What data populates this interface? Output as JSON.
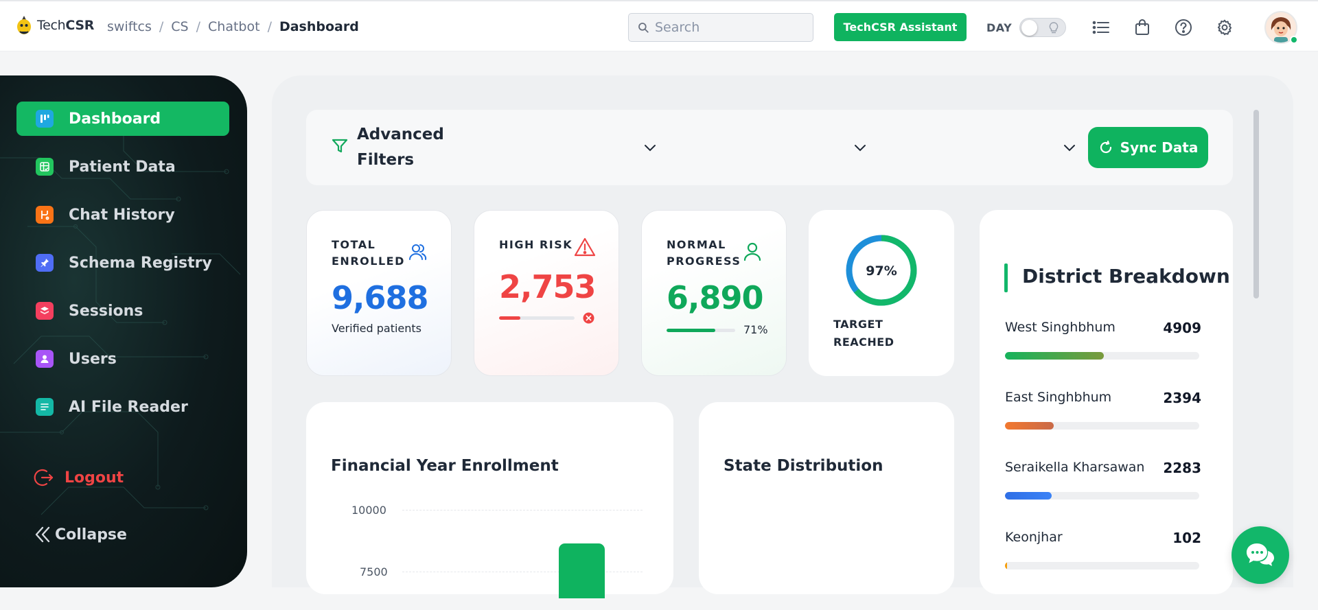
{
  "header": {
    "logo_text_light": "Tech",
    "logo_text_bold": "CSR",
    "breadcrumb": [
      "swiftcs",
      "CS",
      "Chatbot",
      "Dashboard"
    ],
    "search_placeholder": "Search",
    "assistant_label": "TechCSR Assistant",
    "day_label": "DAY",
    "icons": [
      "list-icon",
      "shopping-bag-icon",
      "help-icon",
      "gear-icon"
    ],
    "avatar_status": "online"
  },
  "sidebar": {
    "items": [
      {
        "label": "Dashboard",
        "icon": "dashboard-icon",
        "color": "#1fa8e0",
        "active": true
      },
      {
        "label": "Patient Data",
        "icon": "grid-check-icon",
        "color": "#22c55e",
        "active": false
      },
      {
        "label": "Chat History",
        "icon": "branch-icon",
        "color": "#f97316",
        "active": false
      },
      {
        "label": "Schema Registry",
        "icon": "pin-icon",
        "color": "#4f6df5",
        "active": false
      },
      {
        "label": "Sessions",
        "icon": "layers-icon",
        "color": "#f43f5e",
        "active": false
      },
      {
        "label": "Users",
        "icon": "user-icon",
        "color": "#a855f7",
        "active": false
      },
      {
        "label": "AI File Reader",
        "icon": "file-text-icon",
        "color": "#14b8a6",
        "active": false
      }
    ],
    "logout_label": "Logout",
    "collapse_label": "Collapse"
  },
  "filters": {
    "title": "Advanced Filters",
    "dropdowns": [
      "",
      "",
      ""
    ],
    "sync_label": "Sync Data"
  },
  "stats": {
    "total": {
      "label": "TOTAL ENROLLED",
      "value": "9,688",
      "sub": "Verified patients",
      "color": "#1f6fe0"
    },
    "high_risk": {
      "label": "HIGH RISK",
      "value": "2,753",
      "progress": 0.28,
      "color": "#ef4444"
    },
    "normal": {
      "label": "NORMAL PROGRESS",
      "value": "6,890",
      "progress": 0.71,
      "percent": "71%",
      "color": "#0fa85a"
    },
    "target": {
      "percent": "97%",
      "progress": 0.97,
      "label": "TARGET REACHED"
    }
  },
  "district": {
    "title": "District Breakdown",
    "rows": [
      {
        "name": "West Singhbhum",
        "value": "4909",
        "fraction": 0.51,
        "from": "#16b35c",
        "to": "#7a9a3c"
      },
      {
        "name": "East Singhbhum",
        "value": "2394",
        "fraction": 0.25,
        "from": "#f2782f",
        "to": "#c96a48"
      },
      {
        "name": "Seraikella Kharsawan",
        "value": "2283",
        "fraction": 0.24,
        "from": "#2f6fe6",
        "to": "#3b82f6"
      },
      {
        "name": "Keonjhar",
        "value": "102",
        "fraction": 0.012,
        "from": "#f59e0b",
        "to": "#f59e0b"
      }
    ]
  },
  "fy_chart": {
    "title": "Financial Year Enrollment",
    "y_ticks": [
      "10000",
      "7500"
    ],
    "bar_color": "#0fb35f"
  },
  "state": {
    "title": "State Distribution"
  }
}
